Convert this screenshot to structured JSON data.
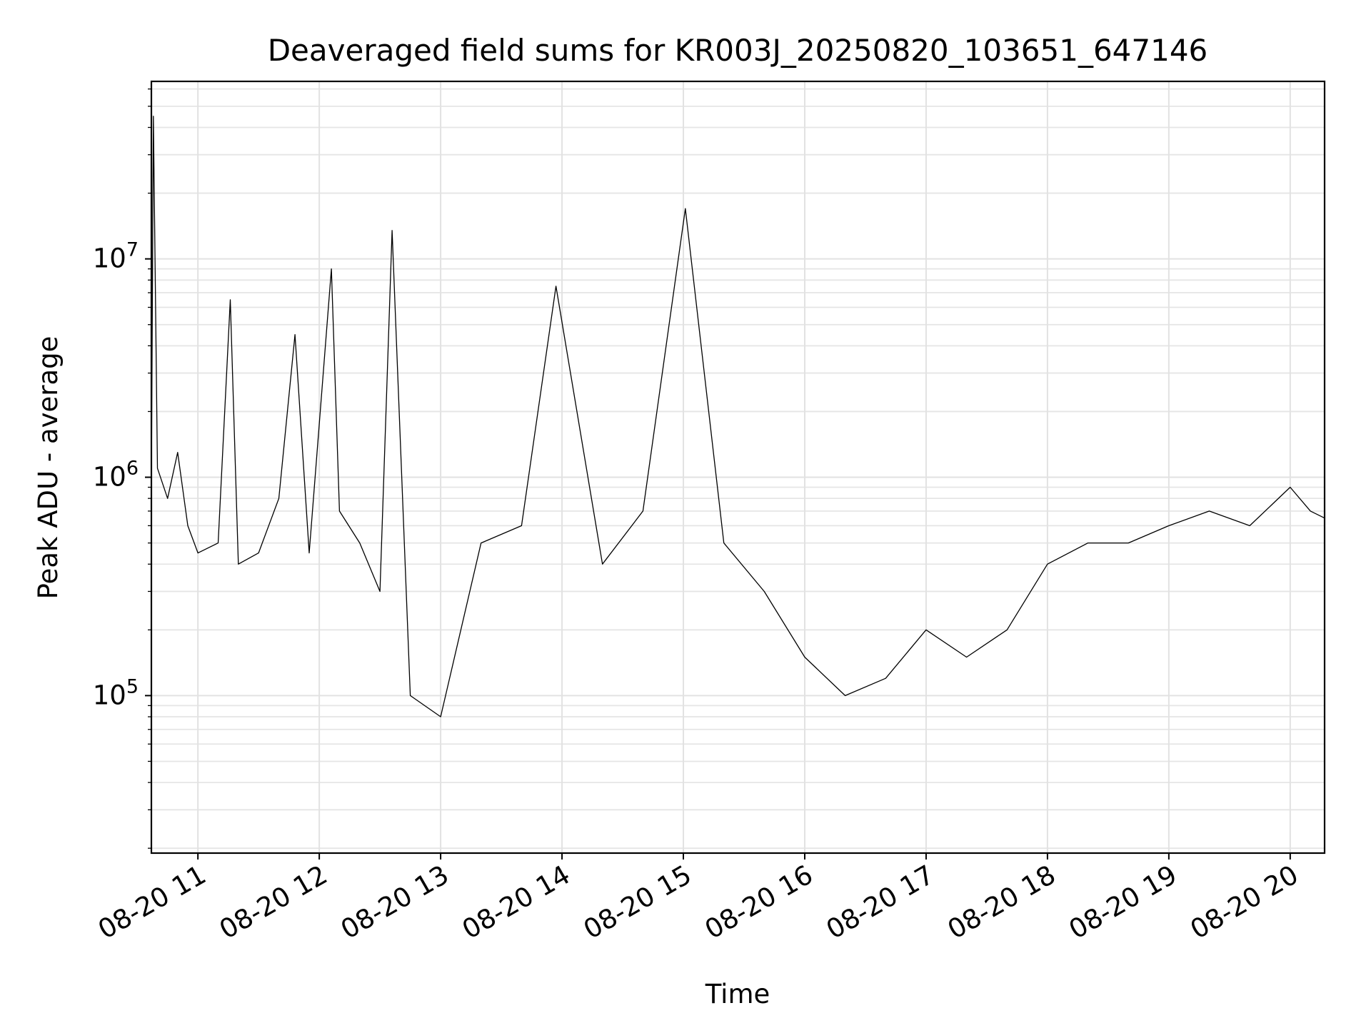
{
  "chart_data": {
    "type": "line",
    "title": "Deaveraged field sums for KR003J_20250820_103651_647146",
    "xlabel": "Time",
    "ylabel": "Peak ADU - average",
    "x_ticks": [
      "08-20 11",
      "08-20 12",
      "08-20 13",
      "08-20 14",
      "08-20 15",
      "08-20 16",
      "08-20 17",
      "08-20 18",
      "08-20 19",
      "08-20 20"
    ],
    "x_tick_hours": [
      11,
      12,
      13,
      14,
      15,
      16,
      17,
      18,
      19,
      20
    ],
    "y_ticks": [
      {
        "exp": "5",
        "value": 100000
      },
      {
        "exp": "6",
        "value": 1000000
      },
      {
        "exp": "7",
        "value": 10000000
      }
    ],
    "y_scale": "log",
    "xlim": [
      "2025-08-20 10:37",
      "2025-08-20 20:17"
    ],
    "ylim": [
      19000,
      65000000
    ],
    "grid": true,
    "line_color": "#000000",
    "series": [
      {
        "x": [
          "2025-08-20 10:37",
          "2025-08-20 10:38",
          "2025-08-20 10:40",
          "2025-08-20 10:45",
          "2025-08-20 10:50",
          "2025-08-20 10:55",
          "2025-08-20 11:00",
          "2025-08-20 11:10",
          "2025-08-20 11:16",
          "2025-08-20 11:20",
          "2025-08-20 11:30",
          "2025-08-20 11:40",
          "2025-08-20 11:48",
          "2025-08-20 11:55",
          "2025-08-20 12:06",
          "2025-08-20 12:10",
          "2025-08-20 12:20",
          "2025-08-20 12:30",
          "2025-08-20 12:36",
          "2025-08-20 12:45",
          "2025-08-20 13:00",
          "2025-08-20 13:20",
          "2025-08-20 13:40",
          "2025-08-20 13:57",
          "2025-08-20 14:20",
          "2025-08-20 14:40",
          "2025-08-20 15:01",
          "2025-08-20 15:20",
          "2025-08-20 15:40",
          "2025-08-20 16:00",
          "2025-08-20 16:20",
          "2025-08-20 16:40",
          "2025-08-20 17:00",
          "2025-08-20 17:20",
          "2025-08-20 17:40",
          "2025-08-20 18:00",
          "2025-08-20 18:20",
          "2025-08-20 18:40",
          "2025-08-20 19:00",
          "2025-08-20 19:20",
          "2025-08-20 19:40",
          "2025-08-20 20:00",
          "2025-08-20 20:10",
          "2025-08-20 20:17"
        ],
        "values": [
          900000,
          45000000,
          1100000,
          800000,
          1300000,
          600000,
          450000,
          500000,
          6500000,
          400000,
          450000,
          800000,
          4500000,
          450000,
          9000000,
          700000,
          500000,
          300000,
          13500000,
          100000,
          80000,
          500000,
          600000,
          7500000,
          400000,
          700000,
          17000000,
          500000,
          300000,
          150000,
          100000,
          120000,
          200000,
          150000,
          200000,
          400000,
          500000,
          500000,
          600000,
          700000,
          600000,
          900000,
          700000,
          650000
        ]
      }
    ]
  }
}
